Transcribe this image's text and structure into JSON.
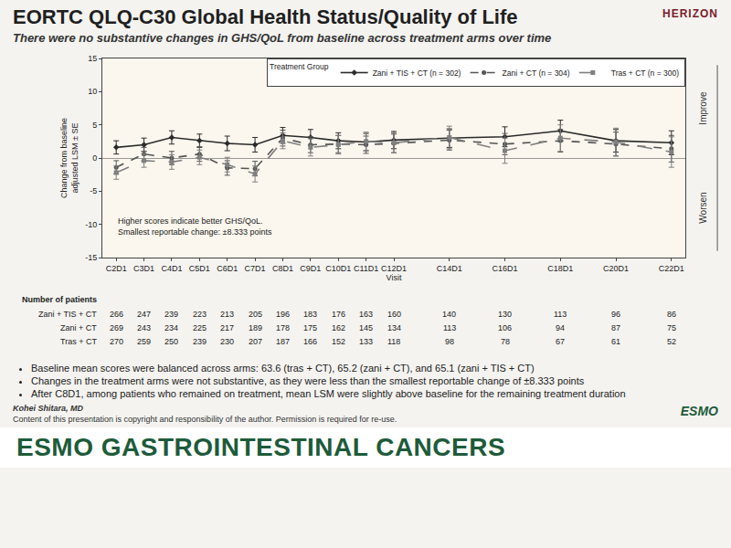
{
  "chart_data": {
    "type": "line",
    "title": "EORTC QLQ-C30 Global Health Status/Quality of Life",
    "subtitle": "There were no substantive changes in GHS/QoL from baseline across treatment arms over time",
    "x_label": "Visit",
    "y_label": [
      "Change from baseline",
      "adjusted LSM ± SE"
    ],
    "x": [
      2,
      3,
      4,
      5,
      6,
      7,
      8,
      9,
      10,
      11,
      12,
      14,
      16,
      18,
      20,
      22
    ],
    "xlim": [
      1.5,
      22.5
    ],
    "xticks": [
      {
        "value": 2,
        "label": "C2D1"
      },
      {
        "value": 3,
        "label": "C3D1"
      },
      {
        "value": 4,
        "label": "C4D1"
      },
      {
        "value": 5,
        "label": "C5D1"
      },
      {
        "value": 6,
        "label": "C6D1"
      },
      {
        "value": 7,
        "label": "C7D1"
      },
      {
        "value": 8,
        "label": "C8D1"
      },
      {
        "value": 9,
        "label": "C9D1"
      },
      {
        "value": 10,
        "label": "C10D1"
      },
      {
        "value": 11,
        "label": "C11D1"
      },
      {
        "value": 12,
        "label": "C12D1"
      },
      {
        "value": 14,
        "label": "C14D1"
      },
      {
        "value": 16,
        "label": "C16D1"
      },
      {
        "value": 18,
        "label": "C18D1"
      },
      {
        "value": 20,
        "label": "C20D1"
      },
      {
        "value": 22,
        "label": "C22D1"
      }
    ],
    "ylim": [
      -15,
      15
    ],
    "yticks": [
      -15,
      -10,
      -5,
      0,
      5,
      10,
      15
    ],
    "grid": false,
    "legend": "top right",
    "legend_title": "Treatment Group",
    "series": [
      {
        "name": "Zani + TIS + CT (n = 302)",
        "color": "#2b2b2b",
        "line_style": "solid",
        "marker": "diamond",
        "values": [
          1.6,
          2.0,
          3.1,
          2.6,
          2.2,
          2.0,
          3.4,
          3.1,
          2.6,
          2.4,
          2.7,
          3.0,
          3.2,
          4.1,
          2.6,
          2.3
        ],
        "errors": [
          1.0,
          1.0,
          1.0,
          1.0,
          1.1,
          1.1,
          1.2,
          1.2,
          1.2,
          1.3,
          1.3,
          1.4,
          1.5,
          1.6,
          1.7,
          1.8
        ]
      },
      {
        "name": "Zani + CT (n = 304)",
        "color": "#555555",
        "line_style": "dash",
        "marker": "circle",
        "values": [
          -1.4,
          0.6,
          0.0,
          0.6,
          -1.5,
          -1.6,
          3.0,
          2.0,
          2.1,
          2.0,
          2.2,
          2.7,
          2.1,
          2.6,
          2.1,
          1.4
        ],
        "errors": [
          1.0,
          1.0,
          1.0,
          1.1,
          1.1,
          1.1,
          1.2,
          1.2,
          1.3,
          1.3,
          1.4,
          1.5,
          1.6,
          1.7,
          1.8,
          2.0
        ]
      },
      {
        "name": "Tras + CT (n = 300)",
        "color": "#808080",
        "line_style": "longdash",
        "marker": "square",
        "values": [
          -2.2,
          -0.4,
          -0.6,
          0.1,
          -1.0,
          -2.4,
          2.6,
          1.6,
          2.0,
          2.5,
          2.3,
          3.1,
          1.1,
          3.0,
          2.4,
          0.9
        ],
        "errors": [
          1.0,
          1.0,
          1.1,
          1.1,
          1.1,
          1.2,
          1.2,
          1.3,
          1.4,
          1.4,
          1.5,
          1.7,
          1.9,
          2.0,
          2.1,
          2.3
        ]
      }
    ],
    "note": [
      "Higher scores indicate better GHS/QoL.",
      "Smallest reportable change: ±8.333 points"
    ],
    "direction_labels": {
      "up": "Improve",
      "down": "Worsen"
    },
    "patients": {
      "title": "Number of patients",
      "rows": [
        {
          "name": "Zani + TIS + CT",
          "values": [
            266,
            247,
            239,
            223,
            213,
            205,
            196,
            183,
            176,
            163,
            160,
            140,
            130,
            113,
            96,
            86
          ]
        },
        {
          "name": "Zani + CT",
          "values": [
            269,
            243,
            234,
            225,
            217,
            189,
            178,
            175,
            162,
            145,
            134,
            113,
            106,
            94,
            87,
            75
          ]
        },
        {
          "name": "Tras + CT",
          "values": [
            270,
            259,
            250,
            239,
            230,
            207,
            187,
            166,
            152,
            133,
            118,
            98,
            78,
            67,
            61,
            52
          ]
        }
      ]
    }
  },
  "logo": "HERIZON",
  "bullets": [
    "Baseline mean scores were balanced across arms: 63.6 (tras + CT), 65.2 (zani + CT), and 65.1 (zani + TIS + CT)",
    "Changes in the treatment arms were not substantive, as they were less than the smallest reportable change of ±8.333 points",
    "After C8D1, among patients who remained on treatment, mean LSM were slightly above baseline for the remaining treatment duration"
  ],
  "presenter": "Kohei Shitara, MD",
  "copyright": "Content of this presentation is copyright and responsibility of the author. Permission is required for re-use.",
  "footer_logo": "ESMO",
  "banner": "ESMO GASTROINTESTINAL CANCERS"
}
